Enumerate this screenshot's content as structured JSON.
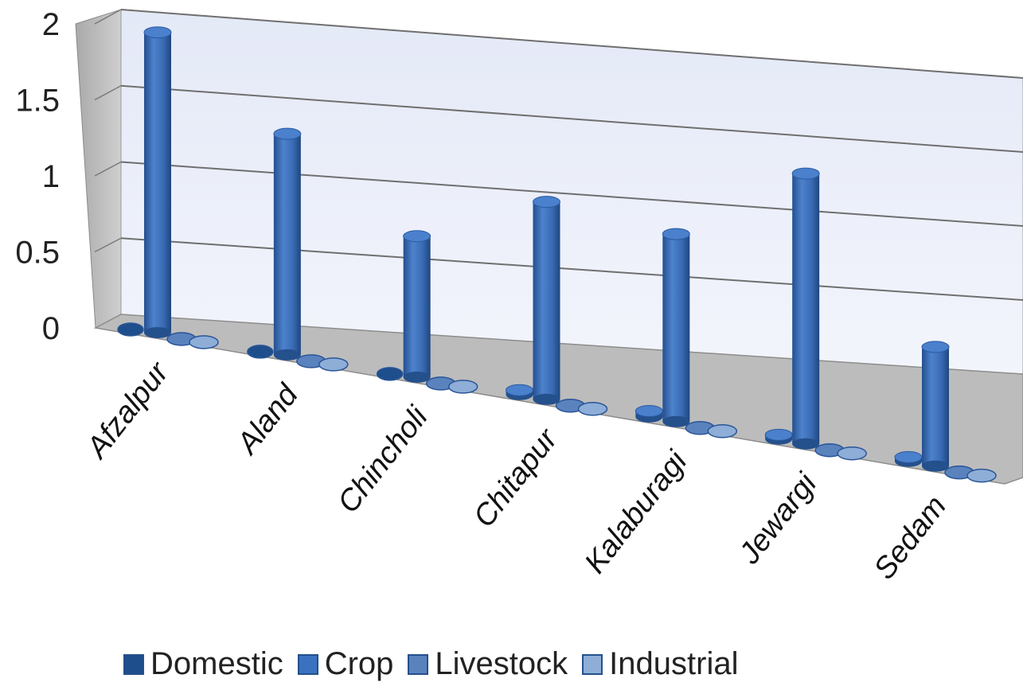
{
  "chart_data": {
    "type": "bar",
    "categories": [
      "Afzalpur",
      "Aland",
      "Chincholi",
      "Chitapur",
      "Kalaburagi",
      "Jewargi",
      "Sedam"
    ],
    "series": [
      {
        "name": "Domestic",
        "values": [
          0.02,
          0.02,
          0.02,
          0.03,
          0.04,
          0.03,
          0.03
        ],
        "color": "#1f4e8c"
      },
      {
        "name": "Crop",
        "values": [
          1.97,
          1.47,
          0.95,
          1.35,
          1.3,
          1.9,
          0.85
        ],
        "color": "#3a72c0"
      },
      {
        "name": "Livestock",
        "values": [
          0.01,
          0.01,
          0.01,
          0.01,
          0.01,
          0.01,
          0.02
        ],
        "color": "#5a82bd"
      },
      {
        "name": "Industrial",
        "values": [
          0.0,
          0.01,
          0.01,
          0.01,
          0.0,
          0.01,
          0.01
        ],
        "color": "#8eaed8"
      }
    ],
    "y_ticks": [
      "0",
      "0.5",
      "1",
      "1.5",
      "2"
    ],
    "ylim": [
      0,
      2
    ],
    "grid": true,
    "legend_position": "bottom",
    "title": "",
    "xlabel": "",
    "ylabel": ""
  }
}
